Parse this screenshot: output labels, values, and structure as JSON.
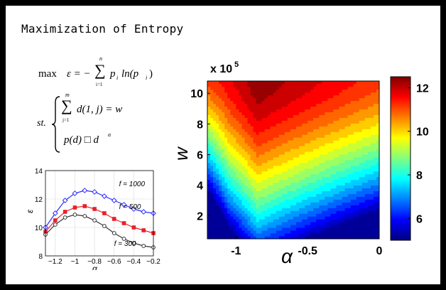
{
  "slide": {
    "title": "Maximization of Entropy"
  },
  "formula": {
    "objective_max": "max",
    "objective_lhs": "ε = −",
    "objective_sum_top": "n",
    "objective_sum_bottom": "i=1",
    "objective_rhs": "p",
    "objective_rhs_sub": "i",
    "objective_ln": "ln(p",
    "objective_ln_sub": "i",
    "objective_close": ")",
    "st_label": "st.",
    "constraint1_sum_top": "m",
    "constraint1_sum_bottom": "j=1",
    "constraint1_body": "d(1, j) = w",
    "constraint2_body": "p(d) □ d",
    "constraint2_exp": "α"
  },
  "chart_data": [
    {
      "type": "line",
      "xlabel": "α",
      "ylabel": "ε",
      "xlim": [
        -1.3,
        -0.2
      ],
      "ylim": [
        8,
        14
      ],
      "x_ticks": [
        "−1.2",
        "−1",
        "−0.8",
        "−0.6",
        "−0.4",
        "−0.2"
      ],
      "x_tick_values": [
        -1.2,
        -1.0,
        -0.8,
        -0.6,
        -0.4,
        -0.2
      ],
      "y_ticks": [
        "8",
        "10",
        "12",
        "14"
      ],
      "y_tick_values": [
        8,
        10,
        12,
        14
      ],
      "grid": true,
      "x": [
        -1.3,
        -1.2,
        -1.1,
        -1.0,
        -0.9,
        -0.8,
        -0.7,
        -0.6,
        -0.5,
        -0.4,
        -0.3,
        -0.2
      ],
      "series": [
        {
          "name": "f = 1000",
          "color": "#2b2bff",
          "marker": "diamond",
          "values": [
            10.0,
            11.0,
            11.9,
            12.4,
            12.6,
            12.5,
            12.2,
            11.9,
            11.6,
            11.3,
            11.1,
            11.0
          ]
        },
        {
          "name": "f = 500",
          "color": "#e8202a",
          "marker": "square",
          "values": [
            9.7,
            10.5,
            11.1,
            11.4,
            11.5,
            11.3,
            11.0,
            10.6,
            10.3,
            10.0,
            9.8,
            9.6
          ]
        },
        {
          "name": "f = 300",
          "color": "#333333",
          "marker": "circle",
          "values": [
            9.5,
            10.2,
            10.7,
            10.9,
            10.8,
            10.5,
            10.1,
            9.6,
            9.2,
            8.9,
            8.7,
            8.6
          ]
        }
      ]
    },
    {
      "type": "heatmap",
      "xlabel": "α",
      "ylabel": "w",
      "y_multiplier": "x 10",
      "y_multiplier_exp": "5",
      "xlim": [
        -1.2,
        0
      ],
      "ylim": [
        0.5,
        10.8
      ],
      "x_ticks": [
        "-1",
        "-0.5",
        "0"
      ],
      "x_tick_values": [
        -1,
        -0.5,
        0
      ],
      "y_ticks": [
        "2",
        "4",
        "6",
        "8",
        "10"
      ],
      "y_tick_values": [
        2,
        4,
        6,
        8,
        10
      ],
      "colorbar_ticks": [
        "6",
        "8",
        "10",
        "12"
      ],
      "colorbar_values": [
        6,
        8,
        10,
        12
      ],
      "clim": [
        5,
        12.5
      ],
      "peak": {
        "alpha": -0.85,
        "w": 10.5,
        "value": 12.4
      }
    }
  ]
}
